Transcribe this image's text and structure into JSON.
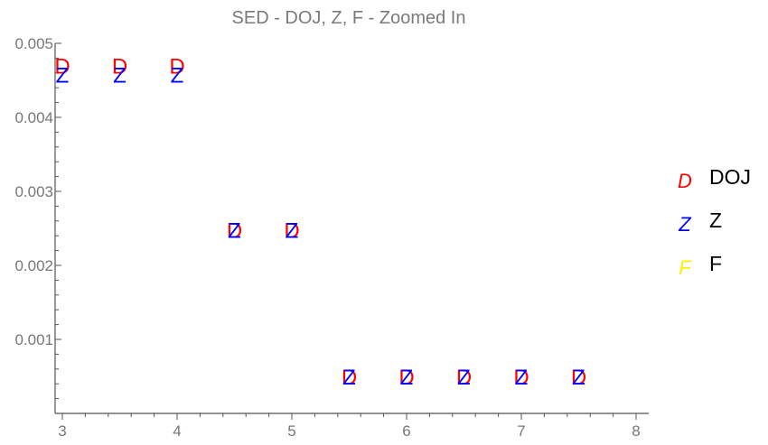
{
  "chart_data": {
    "type": "scatter",
    "title": "SED - DOJ, Z, F - Zoomed In",
    "xlabel": "",
    "ylabel": "",
    "xlim": [
      2.95,
      8.1
    ],
    "ylim": [
      0,
      0.005
    ],
    "x_ticks": [
      "3",
      "4",
      "5",
      "6",
      "7",
      "8"
    ],
    "y_ticks": [
      "0.001",
      "0.002",
      "0.003",
      "0.004",
      "0.005"
    ],
    "legend_position": "right",
    "series": [
      {
        "name": "DOJ",
        "marker": "D",
        "color": "#ff0000",
        "points": [
          [
            3,
            0.0047
          ],
          [
            3.5,
            0.0047
          ],
          [
            4,
            0.0047
          ],
          [
            4.5,
            0.00248
          ],
          [
            5,
            0.00248
          ],
          [
            5.5,
            0.0005
          ],
          [
            6,
            0.0005
          ],
          [
            6.5,
            0.0005
          ],
          [
            7,
            0.0005
          ],
          [
            7.5,
            0.0005
          ]
        ]
      },
      {
        "name": "Z",
        "marker": "Z",
        "color": "#0000ff",
        "points": [
          [
            3,
            0.00458
          ],
          [
            3.5,
            0.00458
          ],
          [
            4,
            0.00458
          ],
          [
            4.5,
            0.00248
          ],
          [
            5,
            0.00248
          ],
          [
            5.5,
            0.0005
          ],
          [
            6,
            0.0005
          ],
          [
            6.5,
            0.0005
          ],
          [
            7,
            0.0005
          ],
          [
            7.5,
            0.0005
          ]
        ]
      },
      {
        "name": "F",
        "marker": "F",
        "color": "#ffee00",
        "points": []
      }
    ]
  }
}
